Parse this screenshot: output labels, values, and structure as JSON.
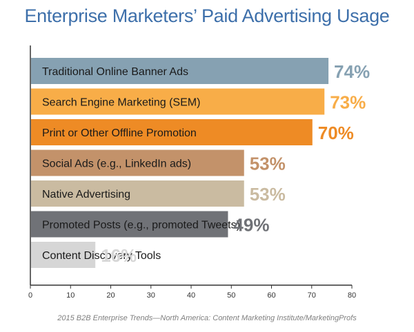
{
  "title": "Enterprise Marketers’ Paid Advertising Usage",
  "source": "2015 B2B Enterprise Trends—North America: Content Marketing Institute/MarketingProfs",
  "chart_data": {
    "type": "bar",
    "orientation": "horizontal",
    "title": "Enterprise Marketers’ Paid Advertising Usage",
    "xlabel": "",
    "ylabel": "",
    "xlim": [
      0,
      80
    ],
    "xticks": [
      0,
      10,
      20,
      30,
      40,
      50,
      60,
      70,
      80
    ],
    "grid": false,
    "categories": [
      "Traditional Online Banner Ads",
      "Search Engine Marketing (SEM)",
      "Print or Other Offline Promotion",
      "Social Ads (e.g., LinkedIn ads)",
      "Native Advertising",
      "Promoted Posts (e.g., promoted Tweets)",
      "Content Discovery Tools"
    ],
    "values": [
      74,
      73,
      70,
      53,
      53,
      49,
      16
    ],
    "value_labels": [
      "74%",
      "73%",
      "70%",
      "53%",
      "53%",
      "49%",
      "16%"
    ],
    "bar_colors": [
      "#86a1b2",
      "#f8ad48",
      "#ee8b25",
      "#c3926a",
      "#cabba1",
      "#707277",
      "#d6d6d6"
    ],
    "label_colors": [
      "#86a1b2",
      "#f8ad48",
      "#ee8b25",
      "#c3926a",
      "#cabba1",
      "#707277",
      "#d6d6d6"
    ]
  }
}
